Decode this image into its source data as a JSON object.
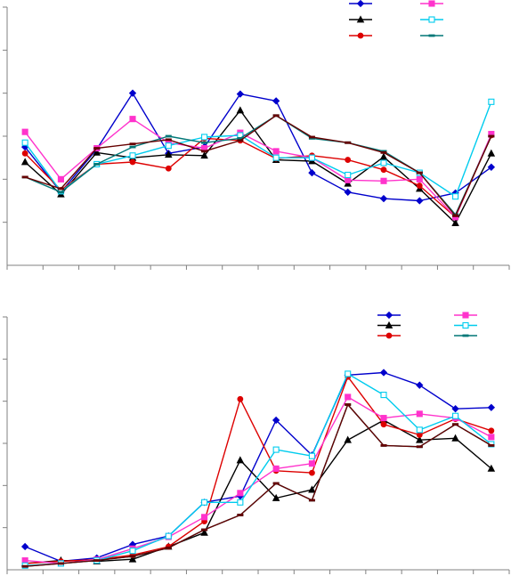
{
  "chart_data": [
    {
      "type": "line",
      "title": "",
      "xlabel": "",
      "ylabel": "",
      "x": [
        1,
        2,
        3,
        4,
        5,
        6,
        7,
        8,
        9,
        10,
        11,
        12,
        13,
        14
      ],
      "ylim": [
        0,
        6
      ],
      "y_gridlines": [
        1,
        2,
        3,
        4,
        5,
        6
      ],
      "grid": false,
      "legend_position": "top-right",
      "series": [
        {
          "color": "#0000cc",
          "marker": "diamond",
          "filled": true,
          "values": [
            2.75,
            1.7,
            2.7,
            4.0,
            2.6,
            2.75,
            3.98,
            3.82,
            2.15,
            1.7,
            1.55,
            1.5,
            1.68,
            2.28
          ]
        },
        {
          "color": "#000000",
          "marker": "triangle",
          "filled": true,
          "values": [
            2.4,
            1.65,
            2.62,
            2.5,
            2.57,
            2.55,
            3.6,
            2.45,
            2.42,
            1.9,
            2.52,
            1.78,
            0.98,
            2.6
          ]
        },
        {
          "color": "#dd0000",
          "marker": "circle",
          "filled": true,
          "values": [
            2.6,
            1.75,
            2.35,
            2.4,
            2.25,
            2.95,
            2.9,
            2.48,
            2.55,
            2.45,
            2.22,
            1.85,
            1.12,
            3.02
          ]
        },
        {
          "color": "#ff33cc",
          "marker": "square",
          "filled": true,
          "values": [
            3.1,
            2.0,
            2.72,
            3.4,
            2.85,
            2.72,
            3.08,
            2.65,
            2.5,
            1.98,
            1.96,
            2.0,
            1.12,
            3.05
          ]
        },
        {
          "color": "#00ccee",
          "marker": "square",
          "filled": false,
          "values": [
            2.85,
            1.72,
            2.35,
            2.55,
            2.78,
            2.98,
            3.02,
            2.5,
            2.5,
            2.1,
            2.38,
            2.15,
            1.6,
            3.8
          ]
        },
        {
          "color": "#007777",
          "marker": "dash",
          "filled": true,
          "values": [
            2.05,
            1.7,
            2.35,
            2.75,
            3.0,
            2.85,
            2.95,
            3.48,
            2.95,
            2.85,
            2.65,
            2.15,
            1.18,
            3.0
          ]
        },
        {
          "color": "#660000",
          "marker": "dash",
          "filled": true,
          "values": [
            2.05,
            1.78,
            2.72,
            2.82,
            2.92,
            2.65,
            2.9,
            3.48,
            2.98,
            2.85,
            2.62,
            2.15,
            1.15,
            3.0
          ]
        }
      ]
    },
    {
      "type": "line",
      "title": "",
      "xlabel": "",
      "ylabel": "",
      "x": [
        1,
        2,
        3,
        4,
        5,
        6,
        7,
        8,
        9,
        10,
        11,
        12,
        13,
        14
      ],
      "ylim": [
        0,
        6
      ],
      "y_gridlines": [
        1,
        2,
        3,
        4,
        5,
        6
      ],
      "grid": false,
      "legend_position": "top-right",
      "series": [
        {
          "color": "#0000cc",
          "marker": "diamond",
          "filled": true,
          "values": [
            0.55,
            0.2,
            0.28,
            0.6,
            0.8,
            1.6,
            1.75,
            3.55,
            2.72,
            4.62,
            4.68,
            4.38,
            3.82,
            3.85
          ]
        },
        {
          "color": "#000000",
          "marker": "triangle",
          "filled": true,
          "values": [
            0.15,
            0.22,
            0.2,
            0.25,
            0.55,
            0.88,
            2.6,
            1.7,
            1.9,
            3.08,
            3.55,
            3.08,
            3.12,
            2.4
          ]
        },
        {
          "color": "#dd0000",
          "marker": "circle",
          "filled": true,
          "values": [
            0.15,
            0.2,
            0.24,
            0.35,
            0.55,
            1.15,
            4.05,
            2.35,
            2.3,
            4.58,
            3.45,
            3.2,
            3.58,
            3.3
          ]
        },
        {
          "color": "#ff33cc",
          "marker": "square",
          "filled": true,
          "values": [
            0.22,
            0.15,
            0.24,
            0.5,
            0.78,
            1.25,
            1.82,
            2.4,
            2.52,
            4.1,
            3.6,
            3.7,
            3.6,
            3.15
          ]
        },
        {
          "color": "#00ccee",
          "marker": "square",
          "filled": false,
          "values": [
            0.1,
            0.15,
            0.22,
            0.45,
            0.8,
            1.6,
            1.6,
            2.85,
            2.7,
            4.65,
            4.15,
            3.32,
            3.65,
            2.98
          ]
        },
        {
          "color": "#007777",
          "marker": "dash",
          "filled": true,
          "values": [
            0.08,
            0.15,
            0.22,
            0.32,
            0.52,
            0.95,
            1.3,
            2.05,
            1.65,
            3.92,
            2.95,
            2.92,
            3.45,
            2.95
          ]
        },
        {
          "color": "#660000",
          "marker": "dash",
          "filled": true,
          "values": [
            0.08,
            0.15,
            0.22,
            0.32,
            0.52,
            0.95,
            1.3,
            2.05,
            1.65,
            3.92,
            2.95,
            2.92,
            3.45,
            2.95
          ]
        }
      ]
    }
  ]
}
